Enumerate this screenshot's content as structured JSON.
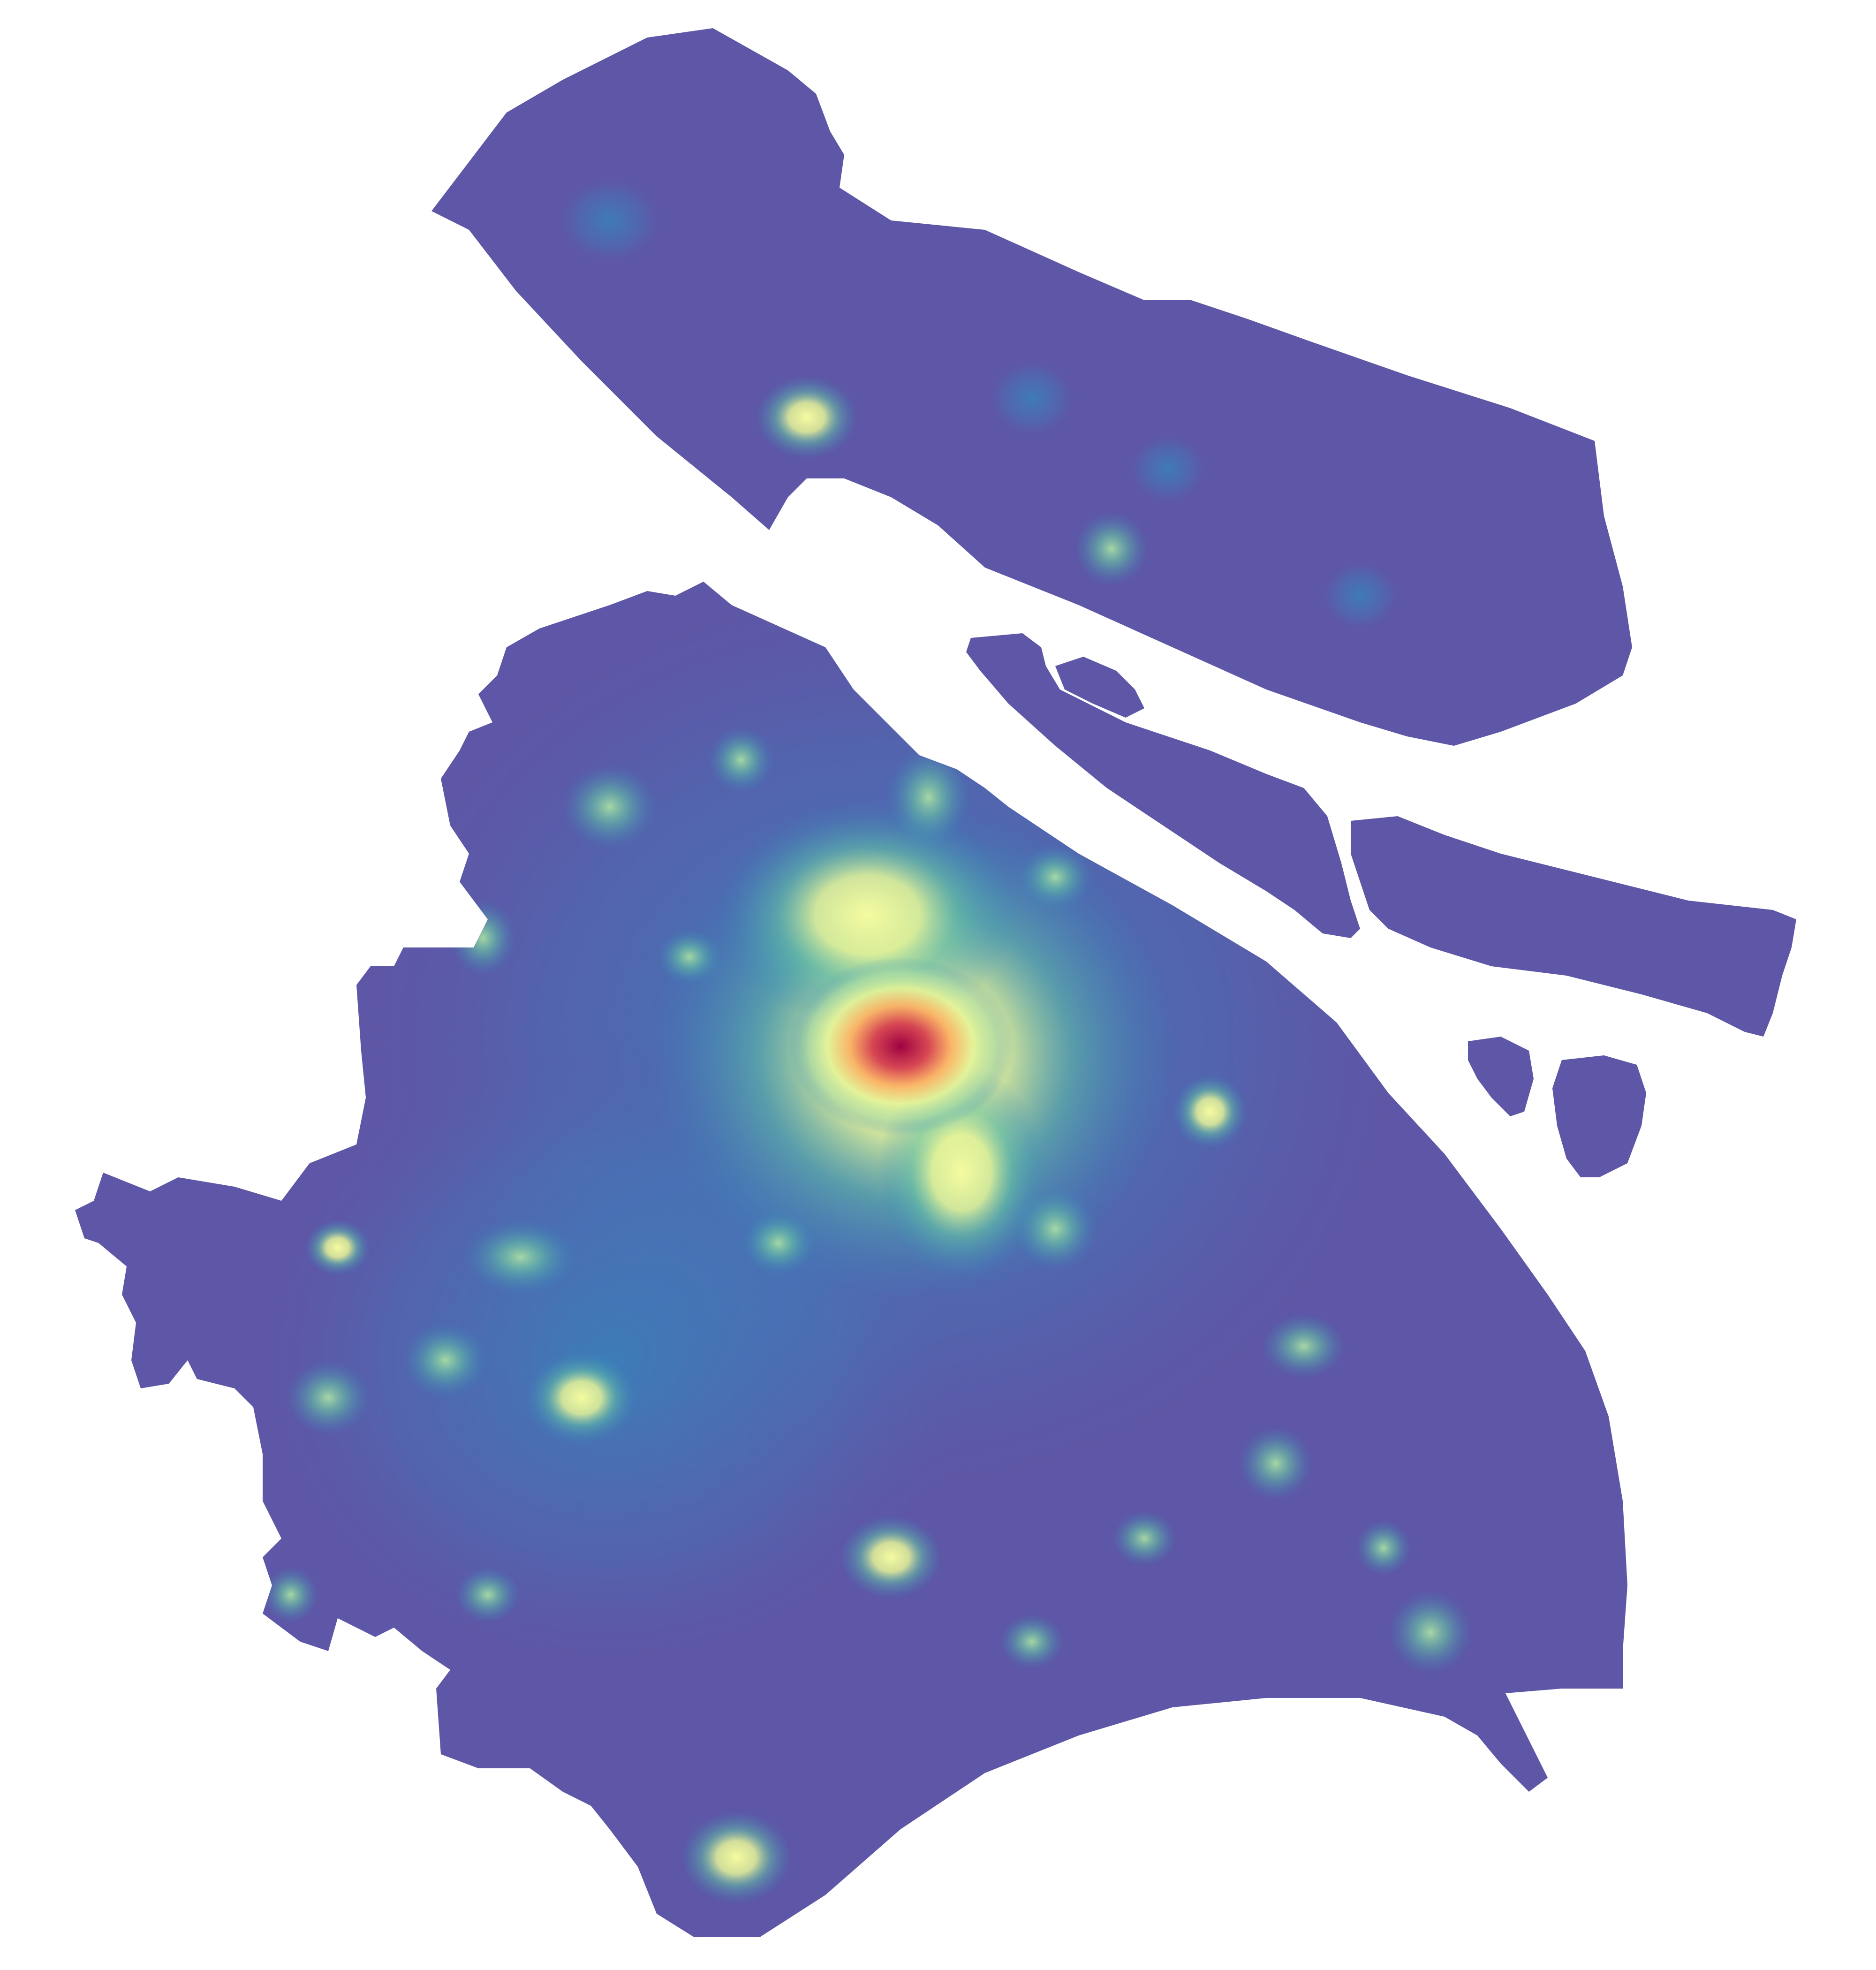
{
  "map": {
    "background_color": "#ffffff",
    "base_color": "#5e56a6",
    "color_ramp": [
      "#5e4fa2",
      "#3288bd",
      "#66c2a5",
      "#abdda4",
      "#e6f598",
      "#fee08b",
      "#f46d43",
      "#9e0142"
    ],
    "features": [
      {
        "id": "main-landmass",
        "fill": "#5e56a6"
      },
      {
        "id": "northern-island",
        "fill": "#5e56a6"
      },
      {
        "id": "long-island",
        "fill": "#5e56a6"
      },
      {
        "id": "small-island",
        "fill": "#5e56a6"
      },
      {
        "id": "east-island",
        "fill": "#5e56a6"
      },
      {
        "id": "islet-a",
        "fill": "#5e56a6"
      },
      {
        "id": "islet-b",
        "fill": "#5e56a6"
      }
    ],
    "hotspots": [
      {
        "name": "core",
        "intensity": 1.0
      },
      {
        "name": "core-ring",
        "intensity": 0.75
      },
      {
        "name": "west-hub",
        "intensity": 0.6
      },
      {
        "name": "southwest-hub",
        "intensity": 0.55
      },
      {
        "name": "north-hub",
        "intensity": 0.5
      },
      {
        "name": "east-hub",
        "intensity": 0.5
      },
      {
        "name": "south-hub",
        "intensity": 0.5
      },
      {
        "name": "island-hub-1",
        "intensity": 0.45
      },
      {
        "name": "island-hub-2",
        "intensity": 0.4
      },
      {
        "name": "minor",
        "intensity": 0.3
      }
    ]
  }
}
